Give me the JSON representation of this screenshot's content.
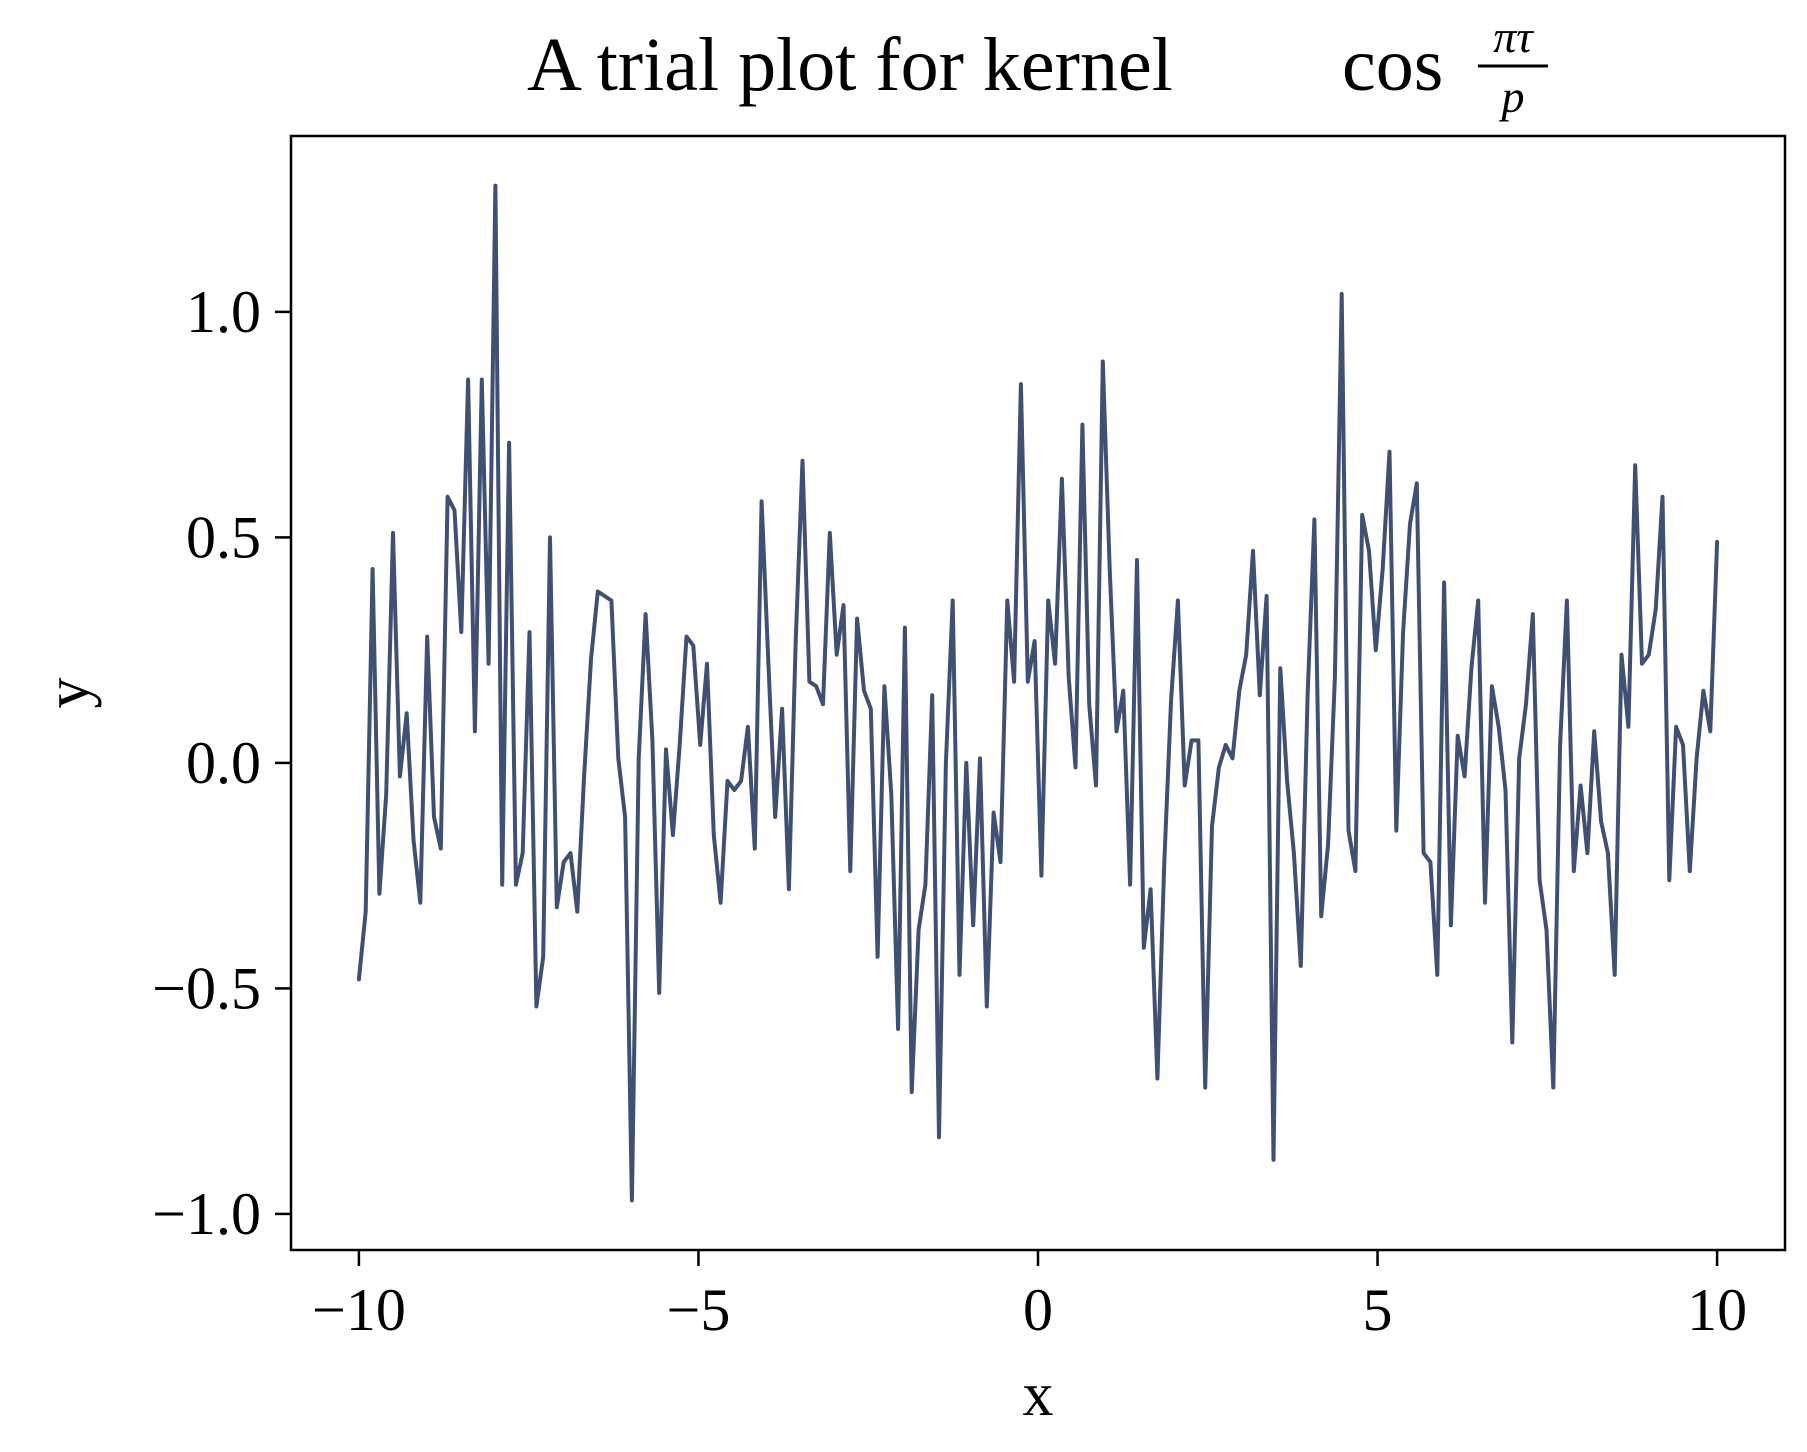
{
  "chart_data": {
    "type": "line",
    "title_text": "A trial plot for kernel",
    "title_func": "cos",
    "title_frac_num": "πτ",
    "title_frac_den": "p",
    "xlabel": "x",
    "ylabel": "y",
    "xlim": [
      -11,
      11
    ],
    "ylim": [
      -1.08,
      1.39
    ],
    "x_ticks": [
      -10,
      -5,
      0,
      5,
      10
    ],
    "x_tick_labels": [
      "−10",
      "−5",
      "0",
      "5",
      "10"
    ],
    "y_ticks": [
      -1.0,
      -0.5,
      0.0,
      0.5,
      1.0
    ],
    "y_tick_labels": [
      "−1.0",
      "−0.5",
      "0.0",
      "0.5",
      "1.0"
    ],
    "line_color": "#3f5073",
    "x_range": [
      -10,
      10
    ],
    "y": [
      -0.48,
      -0.33,
      0.43,
      -0.29,
      -0.07,
      0.51,
      -0.03,
      0.11,
      -0.17,
      -0.31,
      0.28,
      -0.12,
      -0.19,
      0.59,
      0.56,
      0.29,
      0.85,
      0.07,
      0.85,
      0.22,
      1.28,
      -0.27,
      0.71,
      -0.27,
      -0.2,
      0.29,
      -0.54,
      -0.43,
      0.5,
      -0.32,
      -0.22,
      -0.2,
      -0.33,
      -0.03,
      0.23,
      0.38,
      0.37,
      0.36,
      0.01,
      -0.12,
      -0.97,
      0.01,
      0.33,
      0.05,
      -0.51,
      0.03,
      -0.16,
      0.04,
      0.28,
      0.26,
      0.04,
      0.22,
      -0.16,
      -0.31,
      -0.04,
      -0.06,
      -0.04,
      0.08,
      -0.19,
      0.58,
      0.22,
      -0.12,
      0.12,
      -0.28,
      0.27,
      0.67,
      0.18,
      0.17,
      0.13,
      0.51,
      0.24,
      0.35,
      -0.24,
      0.32,
      0.16,
      0.12,
      -0.43,
      0.17,
      -0.07,
      -0.59,
      0.3,
      -0.73,
      -0.37,
      -0.27,
      0.15,
      -0.83,
      0.0,
      0.36,
      -0.47,
      0.0,
      -0.36,
      0.01,
      -0.54,
      -0.11,
      -0.22,
      0.36,
      0.18,
      0.84,
      0.18,
      0.27,
      -0.25,
      0.36,
      0.22,
      0.63,
      0.19,
      -0.01,
      0.75,
      0.13,
      -0.05,
      0.89,
      0.43,
      0.07,
      0.16,
      -0.27,
      0.45,
      -0.41,
      -0.28,
      -0.7,
      -0.22,
      0.14,
      0.36,
      -0.05,
      0.05,
      0.05,
      -0.72,
      -0.14,
      -0.01,
      0.04,
      0.01,
      0.16,
      0.24,
      0.47,
      0.15,
      0.37,
      -0.88,
      0.21,
      -0.04,
      -0.2,
      -0.45,
      0.15,
      0.54,
      -0.34,
      -0.18,
      0.19,
      1.04,
      -0.15,
      -0.24,
      0.55,
      0.47,
      0.25,
      0.43,
      0.69,
      -0.15,
      0.29,
      0.53,
      0.62,
      -0.2,
      -0.22,
      -0.47,
      0.4,
      -0.36,
      0.06,
      -0.03,
      0.21,
      0.36,
      -0.31,
      0.17,
      0.08,
      -0.06,
      -0.62,
      0.01,
      0.13,
      0.33,
      -0.26,
      -0.37,
      -0.72,
      0.04,
      0.36,
      -0.24,
      -0.05,
      -0.2,
      0.07,
      -0.13,
      -0.2,
      -0.47,
      0.24,
      0.08,
      0.66,
      0.22,
      0.24,
      0.34,
      0.59,
      -0.26,
      0.08,
      0.04,
      -0.24,
      0.01,
      0.16,
      0.07,
      0.49
    ]
  }
}
